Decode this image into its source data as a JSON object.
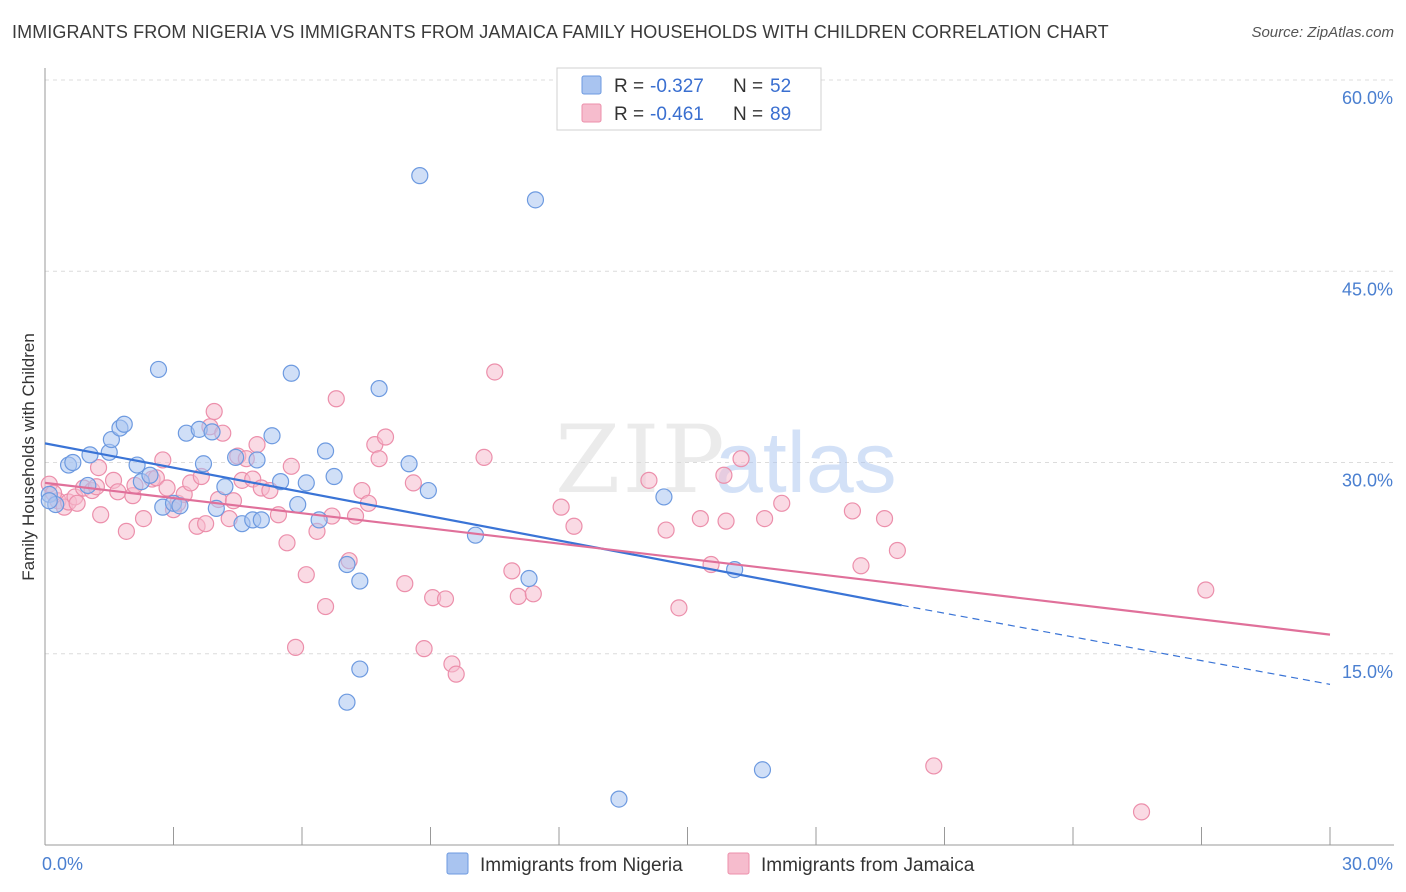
{
  "title": "IMMIGRANTS FROM NIGERIA VS IMMIGRANTS FROM JAMAICA FAMILY HOUSEHOLDS WITH CHILDREN CORRELATION CHART",
  "source": "Source: ZipAtlas.com",
  "watermark": {
    "zip": "ZIP",
    "atlas": "atlas"
  },
  "chart_data": {
    "type": "scatter",
    "xlabel": "",
    "ylabel": "Family Households with Children",
    "xlim": [
      0,
      30
    ],
    "ylim": [
      0,
      60
    ],
    "x_tick_labels": [
      {
        "value": 0,
        "label": "0.0%"
      },
      {
        "value": 30,
        "label": "30.0%"
      }
    ],
    "y_tick_labels": [
      {
        "value": 15,
        "label": "15.0%"
      },
      {
        "value": 30,
        "label": "30.0%"
      },
      {
        "value": 45,
        "label": "45.0%"
      },
      {
        "value": 60,
        "label": "60.0%"
      }
    ],
    "legend": {
      "position": "top-center",
      "entries": [
        {
          "r_label": "R = ",
          "r_value": "-0.327",
          "n_label": "N = ",
          "n_value": "52"
        },
        {
          "r_label": "R = ",
          "r_value": "-0.461",
          "n_label": "N = ",
          "n_value": "89"
        }
      ]
    },
    "bottom_legend": [
      "Immigrants from Nigeria",
      "Immigrants from Jamaica"
    ],
    "colors": {
      "nigeria_fill": "#a9c4f0",
      "nigeria_stroke": "#6d9ae0",
      "nigeria_line": "#3a74d6",
      "jamaica_fill": "#f6bccd",
      "jamaica_stroke": "#ec8fab",
      "jamaica_line": "#e0709a",
      "grid": "#dcdcdc",
      "tick_text": "#4a7fd0"
    },
    "series": [
      {
        "name": "Immigrants from Nigeria",
        "trend": {
          "x0": 0,
          "y0": 31.5,
          "x1": 20,
          "y1": 18.8,
          "dash_to_x": 30,
          "dash_to_y": 12.6
        },
        "points": [
          [
            0.1,
            27.5
          ],
          [
            0.25,
            26.7
          ],
          [
            0.55,
            29.8
          ],
          [
            0.65,
            30.0
          ],
          [
            1.0,
            28.2
          ],
          [
            1.05,
            30.6
          ],
          [
            1.5,
            30.8
          ],
          [
            1.55,
            31.8
          ],
          [
            1.75,
            32.7
          ],
          [
            1.85,
            33.0
          ],
          [
            2.15,
            29.8
          ],
          [
            2.25,
            28.5
          ],
          [
            2.45,
            29.0
          ],
          [
            2.65,
            37.3
          ],
          [
            2.75,
            26.5
          ],
          [
            3.0,
            26.8
          ],
          [
            3.15,
            26.6
          ],
          [
            3.3,
            32.3
          ],
          [
            3.6,
            32.6
          ],
          [
            3.7,
            29.9
          ],
          [
            3.9,
            32.4
          ],
          [
            4.0,
            26.4
          ],
          [
            4.2,
            28.1
          ],
          [
            4.45,
            30.4
          ],
          [
            4.6,
            25.2
          ],
          [
            4.85,
            25.5
          ],
          [
            4.95,
            30.2
          ],
          [
            5.05,
            25.5
          ],
          [
            5.3,
            32.1
          ],
          [
            5.5,
            28.5
          ],
          [
            5.75,
            37.0
          ],
          [
            5.9,
            26.7
          ],
          [
            6.1,
            28.4
          ],
          [
            6.4,
            25.5
          ],
          [
            6.55,
            30.9
          ],
          [
            6.75,
            28.9
          ],
          [
            7.05,
            22.0
          ],
          [
            7.35,
            20.7
          ],
          [
            7.35,
            13.8
          ],
          [
            7.8,
            35.8
          ],
          [
            7.05,
            11.2
          ],
          [
            8.5,
            29.9
          ],
          [
            8.75,
            52.5
          ],
          [
            8.95,
            27.8
          ],
          [
            10.05,
            24.3
          ],
          [
            11.3,
            20.9
          ],
          [
            11.45,
            50.6
          ],
          [
            13.4,
            3.6
          ],
          [
            14.45,
            27.3
          ],
          [
            16.1,
            21.6
          ],
          [
            16.75,
            5.9
          ],
          [
            0.1,
            27.0
          ]
        ]
      },
      {
        "name": "Immigrants from Jamaica",
        "trend": {
          "x0": 0,
          "y0": 28.4,
          "x1": 30,
          "y1": 16.5
        },
        "points": [
          [
            0.1,
            28.3
          ],
          [
            0.3,
            27.0
          ],
          [
            0.45,
            26.5
          ],
          [
            0.55,
            26.9
          ],
          [
            0.7,
            27.3
          ],
          [
            0.75,
            26.8
          ],
          [
            0.9,
            28.0
          ],
          [
            1.1,
            27.8
          ],
          [
            1.2,
            28.1
          ],
          [
            1.25,
            29.6
          ],
          [
            1.3,
            25.9
          ],
          [
            1.6,
            28.6
          ],
          [
            1.7,
            27.7
          ],
          [
            1.9,
            24.6
          ],
          [
            2.05,
            27.4
          ],
          [
            2.1,
            28.2
          ],
          [
            2.3,
            25.6
          ],
          [
            2.5,
            28.7
          ],
          [
            2.6,
            28.8
          ],
          [
            2.75,
            30.2
          ],
          [
            2.85,
            28.0
          ],
          [
            3.0,
            26.3
          ],
          [
            3.1,
            26.8
          ],
          [
            3.25,
            27.5
          ],
          [
            3.4,
            28.4
          ],
          [
            3.55,
            25.0
          ],
          [
            3.65,
            28.9
          ],
          [
            3.75,
            25.2
          ],
          [
            3.85,
            32.8
          ],
          [
            3.95,
            34.0
          ],
          [
            4.05,
            27.1
          ],
          [
            4.15,
            32.3
          ],
          [
            4.3,
            25.6
          ],
          [
            4.4,
            27.0
          ],
          [
            4.5,
            30.5
          ],
          [
            4.6,
            28.6
          ],
          [
            4.7,
            30.3
          ],
          [
            4.85,
            28.7
          ],
          [
            4.95,
            31.4
          ],
          [
            5.05,
            28.0
          ],
          [
            5.25,
            27.8
          ],
          [
            5.45,
            25.9
          ],
          [
            5.65,
            23.7
          ],
          [
            5.75,
            29.7
          ],
          [
            5.85,
            15.5
          ],
          [
            6.1,
            21.2
          ],
          [
            6.35,
            24.6
          ],
          [
            6.55,
            18.7
          ],
          [
            6.7,
            25.8
          ],
          [
            6.8,
            35.0
          ],
          [
            7.1,
            22.3
          ],
          [
            7.25,
            25.8
          ],
          [
            7.4,
            27.8
          ],
          [
            7.55,
            26.8
          ],
          [
            7.7,
            31.4
          ],
          [
            7.8,
            30.3
          ],
          [
            7.95,
            32.0
          ],
          [
            8.4,
            20.5
          ],
          [
            8.6,
            28.4
          ],
          [
            8.85,
            15.4
          ],
          [
            9.05,
            19.4
          ],
          [
            9.35,
            19.3
          ],
          [
            9.5,
            14.2
          ],
          [
            9.6,
            13.4
          ],
          [
            10.25,
            30.4
          ],
          [
            10.5,
            37.1
          ],
          [
            10.9,
            21.5
          ],
          [
            11.05,
            19.5
          ],
          [
            11.4,
            19.7
          ],
          [
            12.05,
            26.5
          ],
          [
            12.35,
            25.0
          ],
          [
            14.1,
            28.6
          ],
          [
            14.5,
            24.7
          ],
          [
            14.8,
            18.6
          ],
          [
            15.3,
            25.6
          ],
          [
            15.55,
            22.0
          ],
          [
            15.85,
            29.0
          ],
          [
            16.25,
            30.3
          ],
          [
            16.8,
            25.6
          ],
          [
            17.2,
            26.8
          ],
          [
            18.85,
            26.2
          ],
          [
            19.05,
            21.9
          ],
          [
            19.6,
            25.6
          ],
          [
            19.9,
            23.1
          ],
          [
            20.75,
            6.2
          ],
          [
            25.6,
            2.6
          ],
          [
            27.1,
            20.0
          ],
          [
            0.2,
            27.6
          ],
          [
            15.9,
            25.4
          ]
        ]
      }
    ]
  }
}
